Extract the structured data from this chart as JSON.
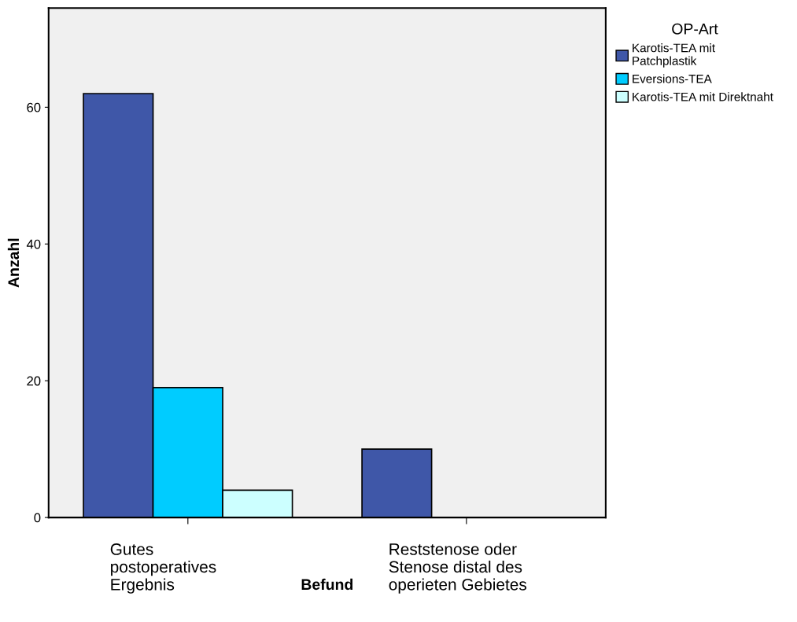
{
  "chart_data": {
    "type": "bar",
    "xlabel": "Befund",
    "ylabel": "Anzahl",
    "legend_title": "OP-Art",
    "categories": [
      "Gutes\npostoperatives\nErgebnis",
      "Reststenose oder\nStenose distal des\noperieten Gebietes"
    ],
    "series": [
      {
        "name": "Karotis-TEA mit\nPatchplastik",
        "color": "#3f57a8",
        "values": [
          62,
          10
        ]
      },
      {
        "name": "Eversions-TEA",
        "color": "#00ccff",
        "values": [
          19,
          null
        ]
      },
      {
        "name": "Karotis-TEA mit Direktnaht",
        "color": "#ccffff",
        "values": [
          4,
          null
        ]
      }
    ],
    "ylim": [
      0,
      74.5
    ],
    "yticks": [
      0,
      20,
      40,
      60
    ],
    "grid": false,
    "legend": "top right"
  }
}
